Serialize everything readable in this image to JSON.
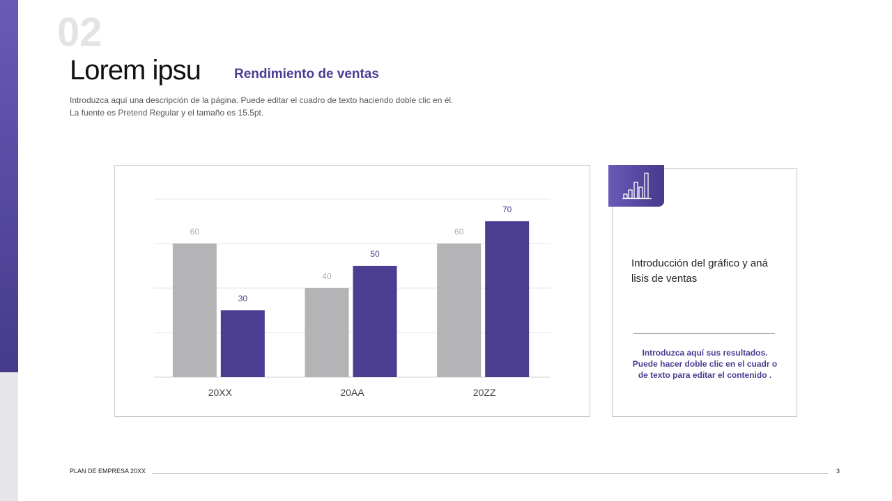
{
  "header": {
    "number": "02",
    "title": "Lorem ipsu",
    "subtitle": "Rendimiento de ventas",
    "description_line1": "Introduzca aquí una descripción de la página. Puede editar el cuadro de texto haciendo doble clic en él.",
    "description_line2": "La fuente es Pretend Regular y el tamaño es 15.5pt."
  },
  "side_panel": {
    "icon": "bar-chart-icon",
    "intro": "Introducción del gráfico y aná lisis de ventas",
    "results": "Introduzca aquí sus resultados. Puede hacer doble clic en el cuadr o de texto para editar el contenido ."
  },
  "footer": {
    "label": "PLAN DE EMPRESA 20XX",
    "page": "3"
  },
  "colors": {
    "accent": "#4a3d92",
    "gray_series": "#b4b4b6"
  },
  "chart_data": {
    "type": "bar",
    "categories": [
      "20XX",
      "20AA",
      "20ZZ"
    ],
    "series": [
      {
        "values": [
          60,
          40,
          60
        ],
        "color": "#b4b4b6"
      },
      {
        "values": [
          30,
          50,
          70
        ],
        "color": "#4a3d92"
      }
    ],
    "ylim": [
      0,
      80
    ],
    "grid": true,
    "legend": "none"
  }
}
